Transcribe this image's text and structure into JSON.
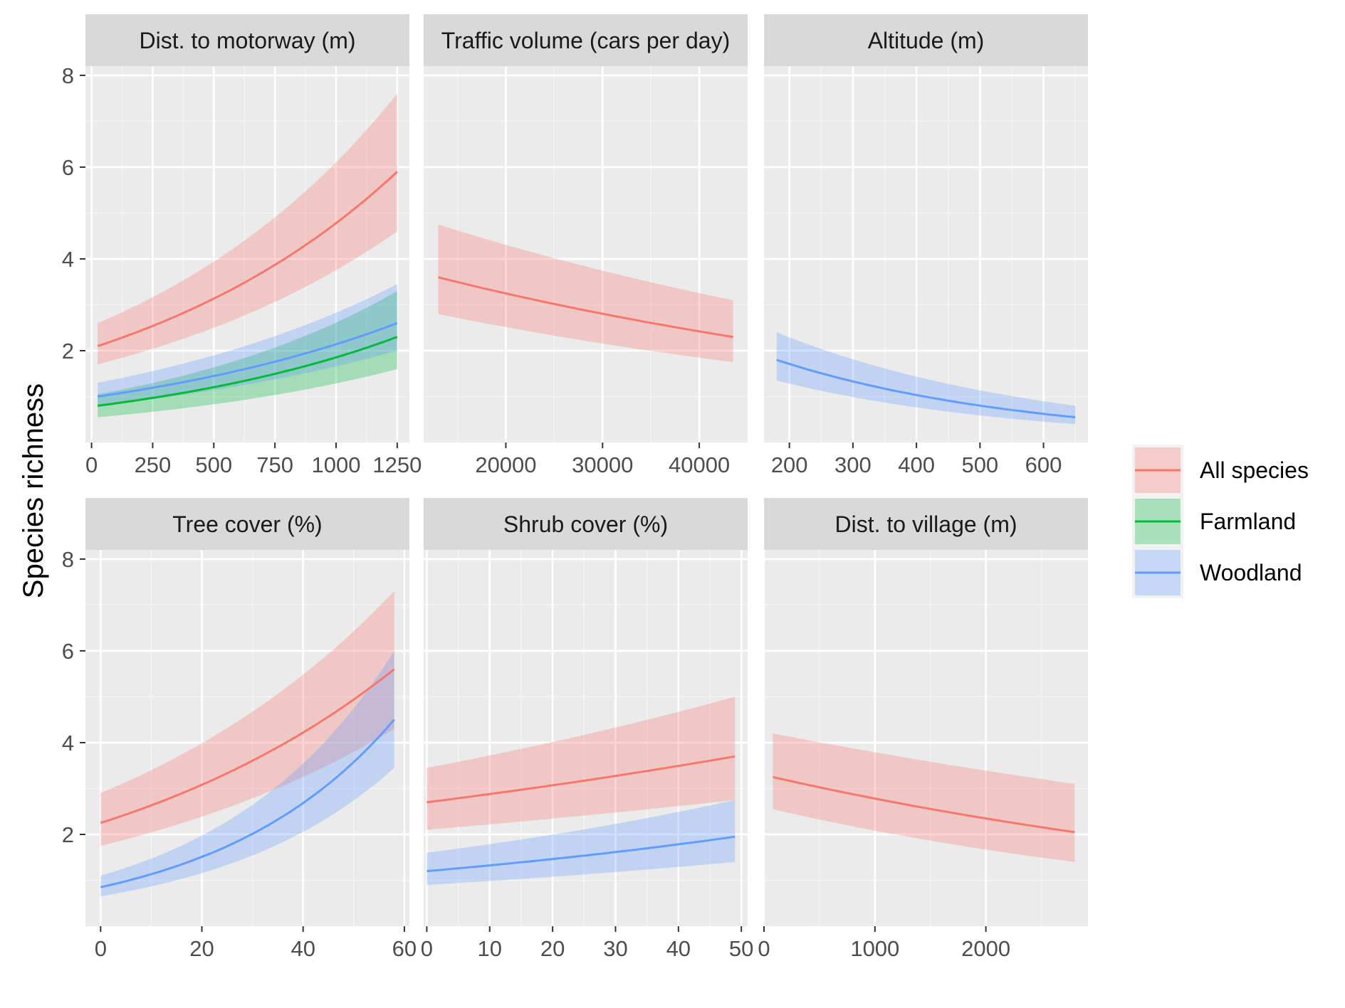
{
  "chart_data": {
    "type": "line",
    "ylabel": "Species richness",
    "ylim": [
      0,
      8.2
    ],
    "yticks": [
      2,
      4,
      6,
      8
    ],
    "legend": {
      "placement": "right",
      "entries": [
        {
          "name": "All species",
          "color": "#F8766D"
        },
        {
          "name": "Farmland",
          "color": "#00BA38"
        },
        {
          "name": "Woodland",
          "color": "#619CFF"
        }
      ]
    },
    "panels": [
      {
        "strip": "Dist. to motorway (m)",
        "xlim": [
          -25,
          1300
        ],
        "xticks": [
          0,
          250,
          500,
          750,
          1000,
          1250
        ],
        "xtick_labels": [
          "0",
          "250",
          "500",
          "750",
          "1000",
          "1250"
        ],
        "series": [
          {
            "name": "All species",
            "x": [
              25,
              1250
            ],
            "y0": 2.1,
            "y1": 5.9,
            "lo0": 1.7,
            "lo1": 4.6,
            "hi0": 2.6,
            "hi1": 7.6
          },
          {
            "name": "Farmland",
            "x": [
              25,
              1250
            ],
            "y0": 0.8,
            "y1": 2.3,
            "lo0": 0.55,
            "lo1": 1.6,
            "hi0": 1.05,
            "hi1": 3.3
          },
          {
            "name": "Woodland",
            "x": [
              25,
              1250
            ],
            "y0": 1.0,
            "y1": 2.6,
            "lo0": 0.8,
            "lo1": 2.0,
            "hi0": 1.3,
            "hi1": 3.45
          }
        ]
      },
      {
        "strip": "Traffic volume (cars per day)",
        "xlim": [
          11500,
          45000
        ],
        "xticks": [
          20000,
          30000,
          40000
        ],
        "xtick_labels": [
          "20000",
          "30000",
          "40000"
        ],
        "series": [
          {
            "name": "All species",
            "x": [
              13000,
              43500
            ],
            "y0": 3.6,
            "y1": 2.3,
            "lo0": 2.8,
            "lo1": 1.75,
            "hi0": 4.75,
            "hi1": 3.1
          }
        ]
      },
      {
        "strip": "Altitude (m)",
        "xlim": [
          160,
          670
        ],
        "xticks": [
          200,
          300,
          400,
          500,
          600
        ],
        "xtick_labels": [
          "200",
          "300",
          "400",
          "500",
          "600"
        ],
        "series": [
          {
            "name": "Woodland",
            "x": [
              180,
              650
            ],
            "y0": 1.8,
            "y1": 0.55,
            "lo0": 1.35,
            "lo1": 0.4,
            "hi0": 2.4,
            "hi1": 0.8
          }
        ]
      },
      {
        "strip": "Tree cover (%)",
        "xlim": [
          -3,
          61
        ],
        "xticks": [
          0,
          20,
          40,
          60
        ],
        "xtick_labels": [
          "0",
          "20",
          "40",
          "60"
        ],
        "series": [
          {
            "name": "All species",
            "x": [
              0,
              58
            ],
            "y0": 2.25,
            "y1": 5.6,
            "lo0": 1.75,
            "lo1": 4.3,
            "hi0": 2.9,
            "hi1": 7.3
          },
          {
            "name": "Woodland",
            "x": [
              0,
              58
            ],
            "y0": 0.85,
            "y1": 4.5,
            "lo0": 0.65,
            "lo1": 3.45,
            "hi0": 1.1,
            "hi1": 6.0
          }
        ]
      },
      {
        "strip": "Shrub cover (%)",
        "xlim": [
          -0.5,
          51
        ],
        "xticks": [
          0,
          10,
          20,
          30,
          40,
          50
        ],
        "xtick_labels": [
          "0",
          "10",
          "20",
          "30",
          "40",
          "50"
        ],
        "series": [
          {
            "name": "All species",
            "x": [
              0,
              49
            ],
            "y0": 2.7,
            "y1": 3.7,
            "lo0": 2.1,
            "lo1": 2.75,
            "hi0": 3.45,
            "hi1": 5.0
          },
          {
            "name": "Woodland",
            "x": [
              0,
              49
            ],
            "y0": 1.2,
            "y1": 1.95,
            "lo0": 0.9,
            "lo1": 1.4,
            "hi0": 1.6,
            "hi1": 2.75
          }
        ]
      },
      {
        "strip": "Dist. to village (m)",
        "xlim": [
          0,
          2920
        ],
        "xticks": [
          0,
          1000,
          2000
        ],
        "xtick_labels": [
          "0",
          "1000",
          "2000"
        ],
        "series": [
          {
            "name": "All species",
            "x": [
              80,
              2800
            ],
            "y0": 3.25,
            "y1": 2.05,
            "lo0": 2.55,
            "lo1": 1.4,
            "hi0": 4.2,
            "hi1": 3.1
          }
        ]
      }
    ]
  }
}
